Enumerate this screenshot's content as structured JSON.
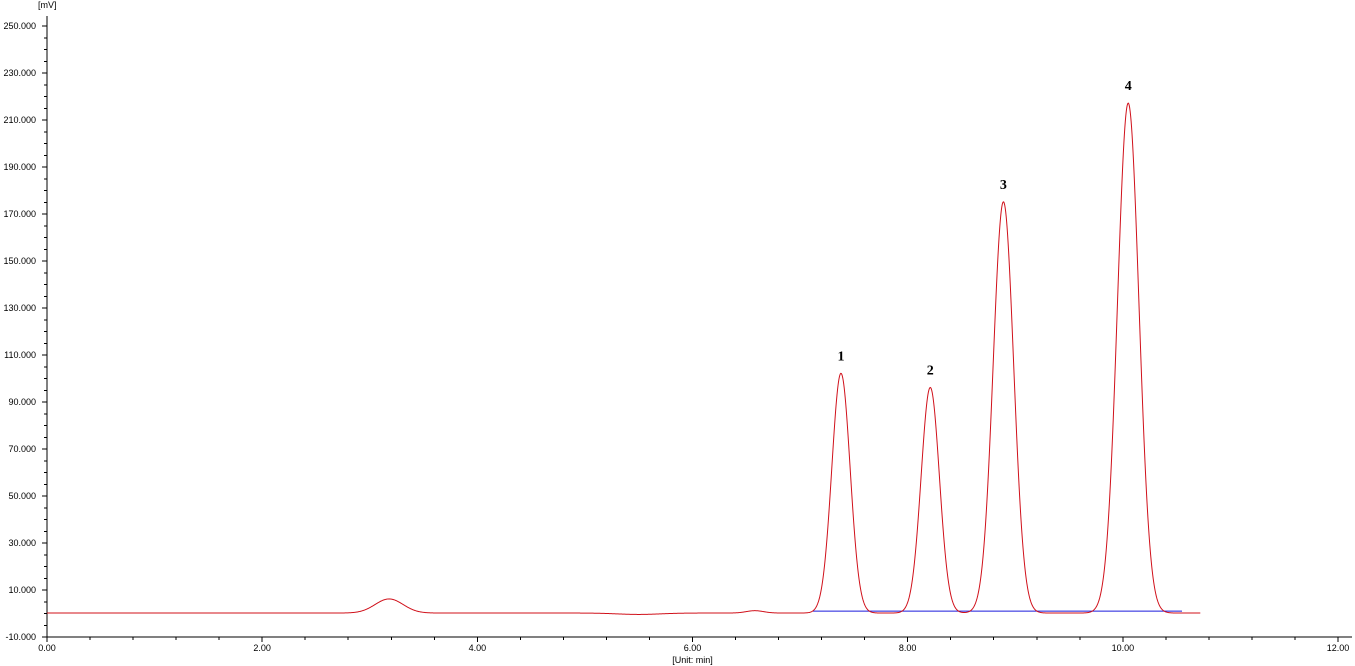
{
  "chart_data": {
    "type": "line",
    "title": "",
    "ylabel": "[mV]",
    "xlabel": "[Unit: min]",
    "xlim": [
      0,
      12
    ],
    "ylim": [
      -10,
      250
    ],
    "x_ticks": [
      0,
      2,
      4,
      6,
      8,
      10,
      12
    ],
    "x_tick_labels": [
      "0.00",
      "2.00",
      "4.00",
      "6.00",
      "8.00",
      "10.00",
      "12.00"
    ],
    "y_ticks": [
      -10,
      10,
      30,
      50,
      70,
      90,
      110,
      130,
      150,
      170,
      190,
      210,
      230,
      250
    ],
    "y_tick_labels": [
      "-10.000",
      "10.000",
      "30.000",
      "50.000",
      "70.000",
      "90.000",
      "110.000",
      "130.000",
      "150.000",
      "170.000",
      "190.000",
      "210.000",
      "230.000",
      "250.000"
    ],
    "grid": false,
    "signal": {
      "color": "#d0101a",
      "x_range": [
        0,
        10.72
      ],
      "baseline": 0.2,
      "peaks": [
        {
          "t": 3.18,
          "height": 6.0,
          "sigma": 0.13
        },
        {
          "t": 6.58,
          "height": 1.0,
          "sigma": 0.08
        },
        {
          "t": 7.38,
          "height": 102.0,
          "sigma": 0.085,
          "label": "1"
        },
        {
          "t": 8.21,
          "height": 96.0,
          "sigma": 0.085,
          "label": "2"
        },
        {
          "t": 8.89,
          "height": 175.0,
          "sigma": 0.095,
          "label": "3"
        },
        {
          "t": 10.05,
          "height": 217.0,
          "sigma": 0.1,
          "label": "4"
        }
      ]
    },
    "integration_baseline": {
      "color": "#1a1adc",
      "segments": [
        [
          7.12,
          10.55
        ]
      ],
      "value": 1.0
    }
  }
}
